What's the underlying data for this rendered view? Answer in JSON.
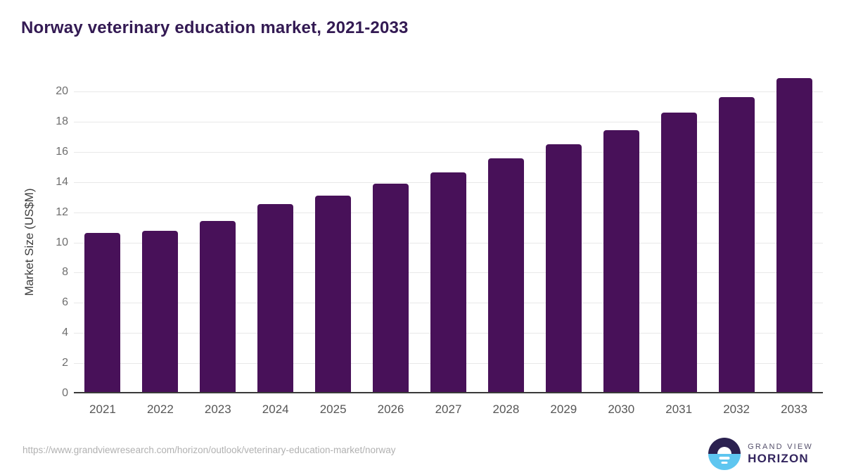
{
  "header": {
    "title": "Norway veterinary education market, 2021-2033"
  },
  "chart_data": {
    "type": "bar",
    "title": "Norway veterinary education market, 2021-2033",
    "categories": [
      "2021",
      "2022",
      "2023",
      "2024",
      "2025",
      "2026",
      "2027",
      "2028",
      "2029",
      "2030",
      "2031",
      "2032",
      "2033"
    ],
    "values": [
      10.65,
      10.75,
      11.4,
      12.55,
      13.1,
      13.9,
      14.65,
      15.55,
      16.5,
      17.45,
      18.6,
      19.65,
      20.9
    ],
    "xlabel": "",
    "ylabel": "Market Size (US$M)",
    "ylim": [
      0,
      21.2
    ],
    "yticks": [
      0,
      2,
      4,
      6,
      8,
      10,
      12,
      14,
      16,
      18,
      20
    ],
    "grid": true,
    "legend_position": "none",
    "bar_color": "#481159",
    "gridline_color": "#e8e8e8",
    "axis_line_color": "#3a3a3a"
  },
  "footer": {
    "source_url": "https://www.grandviewresearch.com/horizon/outlook/veterinary-education-market/norway",
    "logo": {
      "top": "GRAND VIEW",
      "bottom": "HORIZON",
      "mark_top_color": "#2b2150",
      "mark_bottom_color": "#5ec6f0"
    }
  }
}
